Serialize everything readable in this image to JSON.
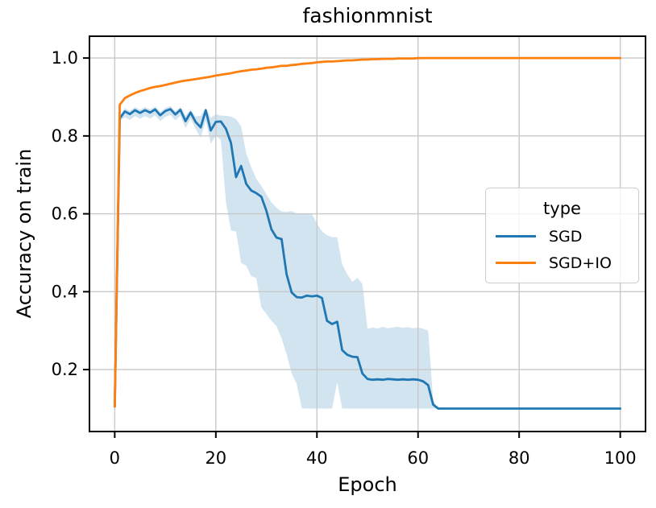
{
  "figure": {
    "title": "fashionmnist",
    "xlabel": "Epoch",
    "ylabel": "Accuracy on train"
  },
  "legend": {
    "title": "type",
    "entries": [
      {
        "label": "SGD",
        "color": "#1f77b4"
      },
      {
        "label": "SGD+IO",
        "color": "#ff7f0e"
      }
    ]
  },
  "colors": {
    "sgd_line": "#1f77b4",
    "sgdio_line": "#ff7f0e",
    "sgd_band_fill": "rgba(31,119,180,0.2)",
    "grid": "#c8c8c8",
    "spine": "#000000"
  },
  "chart_data": {
    "type": "line",
    "title": "fashionmnist",
    "xlabel": "Epoch",
    "ylabel": "Accuracy on train",
    "xlim": [
      -5,
      105
    ],
    "ylim": [
      0.041,
      1.056
    ],
    "xticks": [
      0,
      20,
      40,
      60,
      80,
      100
    ],
    "xtick_labels": [
      "0",
      "20",
      "40",
      "60",
      "80",
      "100"
    ],
    "yticks": [
      0.2,
      0.4,
      0.6,
      0.8,
      1.0
    ],
    "ytick_labels": [
      "0.2",
      "0.4",
      "0.6",
      "0.8",
      "1.0"
    ],
    "grid": true,
    "legend_position": "center right",
    "series": [
      {
        "name": "SGD",
        "color": "#1f77b4",
        "points": [
          [
            0,
            0.105
          ],
          [
            1,
            0.845
          ],
          [
            2,
            0.863
          ],
          [
            3,
            0.856
          ],
          [
            4,
            0.866
          ],
          [
            5,
            0.859
          ],
          [
            6,
            0.866
          ],
          [
            7,
            0.86
          ],
          [
            8,
            0.868
          ],
          [
            9,
            0.853
          ],
          [
            10,
            0.864
          ],
          [
            11,
            0.869
          ],
          [
            12,
            0.855
          ],
          [
            13,
            0.867
          ],
          [
            14,
            0.838
          ],
          [
            15,
            0.86
          ],
          [
            16,
            0.836
          ],
          [
            17,
            0.822
          ],
          [
            18,
            0.866
          ],
          [
            19,
            0.814
          ],
          [
            20,
            0.836
          ],
          [
            21,
            0.837
          ],
          [
            22,
            0.818
          ],
          [
            23,
            0.782
          ],
          [
            24,
            0.694
          ],
          [
            25,
            0.723
          ],
          [
            26,
            0.677
          ],
          [
            27,
            0.66
          ],
          [
            28,
            0.653
          ],
          [
            29,
            0.644
          ],
          [
            30,
            0.608
          ],
          [
            31,
            0.56
          ],
          [
            32,
            0.539
          ],
          [
            33,
            0.535
          ],
          [
            34,
            0.445
          ],
          [
            35,
            0.398
          ],
          [
            36,
            0.386
          ],
          [
            37,
            0.385
          ],
          [
            38,
            0.39
          ],
          [
            39,
            0.388
          ],
          [
            40,
            0.39
          ],
          [
            41,
            0.384
          ],
          [
            42,
            0.325
          ],
          [
            43,
            0.317
          ],
          [
            44,
            0.323
          ],
          [
            45,
            0.25
          ],
          [
            46,
            0.238
          ],
          [
            47,
            0.233
          ],
          [
            48,
            0.232
          ],
          [
            49,
            0.19
          ],
          [
            50,
            0.176
          ],
          [
            51,
            0.174
          ],
          [
            52,
            0.175
          ],
          [
            53,
            0.174
          ],
          [
            54,
            0.176
          ],
          [
            55,
            0.175
          ],
          [
            56,
            0.174
          ],
          [
            57,
            0.175
          ],
          [
            58,
            0.174
          ],
          [
            59,
            0.175
          ],
          [
            60,
            0.174
          ],
          [
            61,
            0.17
          ],
          [
            62,
            0.16
          ],
          [
            63,
            0.11
          ],
          [
            64,
            0.1
          ],
          [
            100,
            0.1
          ]
        ],
        "band_fill": "rgba(31,119,180,0.2)",
        "band_lower": [
          [
            0,
            0.105
          ],
          [
            1,
            0.838
          ],
          [
            2,
            0.848
          ],
          [
            3,
            0.841
          ],
          [
            4,
            0.851
          ],
          [
            5,
            0.844
          ],
          [
            6,
            0.851
          ],
          [
            7,
            0.845
          ],
          [
            8,
            0.853
          ],
          [
            9,
            0.838
          ],
          [
            10,
            0.849
          ],
          [
            11,
            0.854
          ],
          [
            12,
            0.84
          ],
          [
            13,
            0.852
          ],
          [
            14,
            0.82
          ],
          [
            15,
            0.845
          ],
          [
            16,
            0.818
          ],
          [
            17,
            0.795
          ],
          [
            18,
            0.84
          ],
          [
            19,
            0.78
          ],
          [
            20,
            0.8
          ],
          [
            21,
            0.79
          ],
          [
            22,
            0.63
          ],
          [
            23,
            0.557
          ],
          [
            24,
            0.555
          ],
          [
            25,
            0.474
          ],
          [
            26,
            0.467
          ],
          [
            27,
            0.44
          ],
          [
            28,
            0.435
          ],
          [
            29,
            0.36
          ],
          [
            30,
            0.343
          ],
          [
            31,
            0.325
          ],
          [
            32,
            0.312
          ],
          [
            33,
            0.28
          ],
          [
            34,
            0.24
          ],
          [
            35,
            0.19
          ],
          [
            36,
            0.163
          ],
          [
            37,
            0.101
          ],
          [
            38,
            0.1
          ],
          [
            43,
            0.1
          ],
          [
            44,
            0.168
          ],
          [
            45,
            0.1
          ],
          [
            100,
            0.1
          ]
        ],
        "band_upper": [
          [
            0,
            0.105
          ],
          [
            1,
            0.852
          ],
          [
            2,
            0.871
          ],
          [
            3,
            0.864
          ],
          [
            4,
            0.874
          ],
          [
            5,
            0.867
          ],
          [
            6,
            0.874
          ],
          [
            7,
            0.868
          ],
          [
            8,
            0.876
          ],
          [
            9,
            0.861
          ],
          [
            10,
            0.872
          ],
          [
            11,
            0.877
          ],
          [
            12,
            0.863
          ],
          [
            13,
            0.875
          ],
          [
            14,
            0.852
          ],
          [
            15,
            0.868
          ],
          [
            16,
            0.85
          ],
          [
            17,
            0.852
          ],
          [
            18,
            0.872
          ],
          [
            19,
            0.846
          ],
          [
            20,
            0.856
          ],
          [
            21,
            0.852
          ],
          [
            22,
            0.852
          ],
          [
            23,
            0.85
          ],
          [
            24,
            0.843
          ],
          [
            25,
            0.825
          ],
          [
            26,
            0.755
          ],
          [
            27,
            0.72
          ],
          [
            28,
            0.69
          ],
          [
            29,
            0.672
          ],
          [
            30,
            0.65
          ],
          [
            31,
            0.63
          ],
          [
            32,
            0.615
          ],
          [
            33,
            0.606
          ],
          [
            34,
            0.605
          ],
          [
            35,
            0.607
          ],
          [
            36,
            0.601
          ],
          [
            37,
            0.6
          ],
          [
            38,
            0.601
          ],
          [
            39,
            0.6
          ],
          [
            40,
            0.575
          ],
          [
            41,
            0.555
          ],
          [
            42,
            0.545
          ],
          [
            43,
            0.54
          ],
          [
            44,
            0.54
          ],
          [
            45,
            0.47
          ],
          [
            46,
            0.445
          ],
          [
            47,
            0.425
          ],
          [
            48,
            0.436
          ],
          [
            49,
            0.42
          ],
          [
            50,
            0.305
          ],
          [
            51,
            0.308
          ],
          [
            52,
            0.305
          ],
          [
            53,
            0.31
          ],
          [
            54,
            0.306
          ],
          [
            55,
            0.308
          ],
          [
            56,
            0.31
          ],
          [
            57,
            0.307
          ],
          [
            58,
            0.309
          ],
          [
            59,
            0.306
          ],
          [
            60,
            0.308
          ],
          [
            61,
            0.305
          ],
          [
            62,
            0.3
          ],
          [
            63,
            0.12
          ],
          [
            64,
            0.1
          ],
          [
            100,
            0.1
          ]
        ]
      },
      {
        "name": "SGD+IO",
        "color": "#ff7f0e",
        "points": [
          [
            0,
            0.105
          ],
          [
            1,
            0.88
          ],
          [
            2,
            0.897
          ],
          [
            3,
            0.904
          ],
          [
            4,
            0.91
          ],
          [
            5,
            0.915
          ],
          [
            6,
            0.919
          ],
          [
            7,
            0.923
          ],
          [
            8,
            0.926
          ],
          [
            9,
            0.928
          ],
          [
            10,
            0.931
          ],
          [
            11,
            0.934
          ],
          [
            12,
            0.937
          ],
          [
            13,
            0.94
          ],
          [
            14,
            0.942
          ],
          [
            15,
            0.944
          ],
          [
            16,
            0.946
          ],
          [
            17,
            0.948
          ],
          [
            18,
            0.95
          ],
          [
            19,
            0.952
          ],
          [
            20,
            0.955
          ],
          [
            21,
            0.957
          ],
          [
            22,
            0.959
          ],
          [
            23,
            0.961
          ],
          [
            24,
            0.964
          ],
          [
            25,
            0.966
          ],
          [
            26,
            0.968
          ],
          [
            27,
            0.97
          ],
          [
            28,
            0.971
          ],
          [
            29,
            0.973
          ],
          [
            30,
            0.975
          ],
          [
            31,
            0.976
          ],
          [
            32,
            0.978
          ],
          [
            33,
            0.98
          ],
          [
            34,
            0.98
          ],
          [
            35,
            0.982
          ],
          [
            36,
            0.983
          ],
          [
            37,
            0.985
          ],
          [
            38,
            0.986
          ],
          [
            39,
            0.987
          ],
          [
            40,
            0.989
          ],
          [
            41,
            0.99
          ],
          [
            42,
            0.991
          ],
          [
            43,
            0.991
          ],
          [
            44,
            0.992
          ],
          [
            45,
            0.993
          ],
          [
            46,
            0.994
          ],
          [
            47,
            0.994
          ],
          [
            48,
            0.995
          ],
          [
            49,
            0.996
          ],
          [
            50,
            0.996
          ],
          [
            51,
            0.997
          ],
          [
            52,
            0.997
          ],
          [
            53,
            0.998
          ],
          [
            54,
            0.998
          ],
          [
            55,
            0.998
          ],
          [
            56,
            0.999
          ],
          [
            57,
            0.999
          ],
          [
            58,
            0.999
          ],
          [
            59,
            0.999
          ],
          [
            60,
            1.0
          ],
          [
            100,
            1.0
          ]
        ]
      }
    ]
  }
}
